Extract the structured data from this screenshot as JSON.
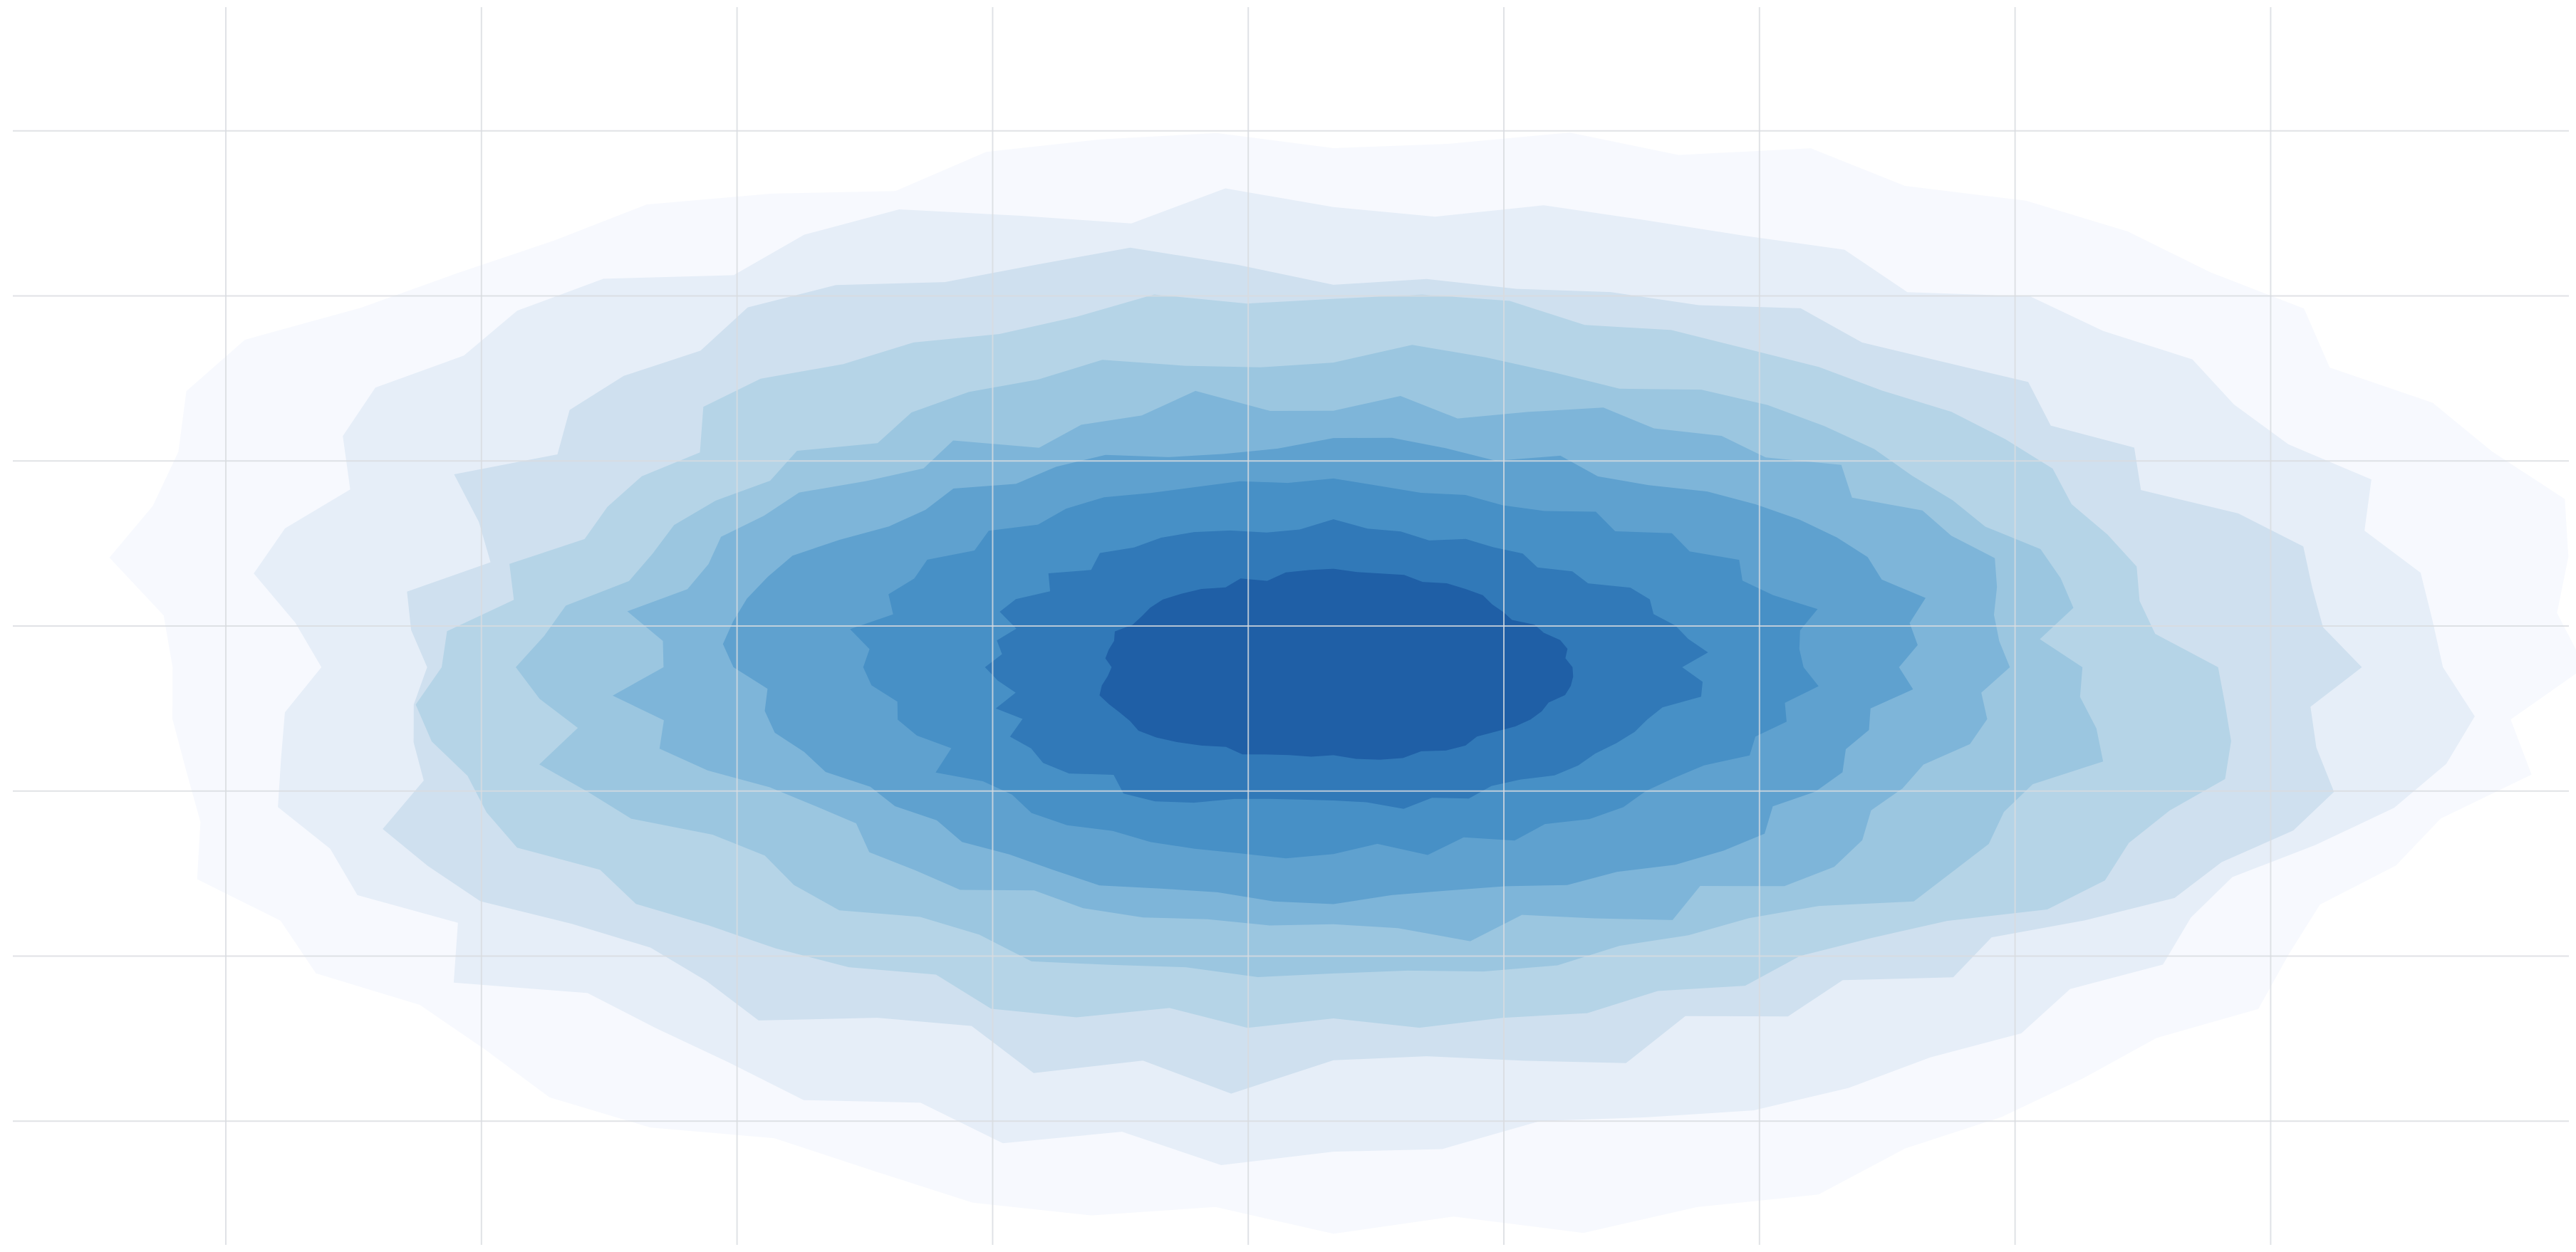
{
  "chart_data": {
    "type": "contour",
    "title": "",
    "xlabel": "",
    "ylabel": "",
    "grid": true,
    "xlim": [
      -3,
      3
    ],
    "ylim": [
      -3,
      3
    ],
    "x_gridlines": [
      -2.5,
      -1.9,
      -1.3,
      -0.7,
      -0.1,
      0.5,
      1.1,
      1.7,
      2.3
    ],
    "y_gridlines": [
      -2.4,
      -1.6,
      -0.8,
      0.0,
      0.8,
      1.6,
      2.4
    ],
    "center": [
      0.1,
      -0.2
    ],
    "level_colors": [
      "#f7f9fe",
      "#e6eef8",
      "#cfe0ef",
      "#b5d4e7",
      "#9bc6e0",
      "#7eb5d9",
      "#5fa1cf",
      "#4790c6",
      "#3179b8",
      "#1f5fa6"
    ],
    "level_sizes": [
      [
        2.85,
        2.65
      ],
      [
        2.55,
        2.3
      ],
      [
        2.3,
        1.95
      ],
      [
        2.05,
        1.75
      ],
      [
        1.8,
        1.5
      ],
      [
        1.58,
        1.3
      ],
      [
        1.38,
        1.1
      ],
      [
        1.1,
        0.9
      ],
      [
        0.82,
        0.68
      ],
      [
        0.55,
        0.45
      ]
    ]
  }
}
